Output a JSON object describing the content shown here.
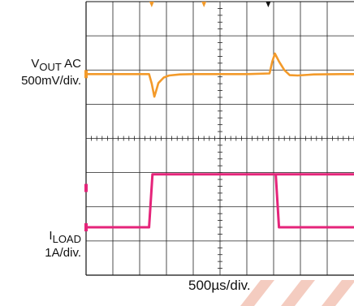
{
  "labels": {
    "vout_main": "V",
    "vout_sub": "OUT",
    "vout_suffix": " AC",
    "vout_scale": "500mV/div.",
    "iload_main": "I",
    "iload_sub": "LOAD",
    "iload_scale": "1A/div.",
    "time_scale": "500µs/div."
  },
  "chart_data": {
    "type": "line",
    "title": "",
    "grid": true,
    "x_divisions": 10,
    "y_divisions": 8,
    "x_scale": "500µs/div.",
    "xlim_div": [
      0,
      10
    ],
    "ylim_div": [
      0,
      8
    ],
    "series": [
      {
        "name": "VOUT AC",
        "color": "#f39a2a",
        "scale": "500mV/div.",
        "x_div": [
          0,
          2.35,
          2.45,
          2.55,
          2.6,
          2.7,
          2.9,
          3.1,
          3.5,
          4.0,
          5.0,
          6.0,
          6.85,
          6.95,
          7.05,
          7.2,
          7.4,
          7.6,
          7.9,
          8.5,
          9.5,
          10.0
        ],
        "y_div": [
          5.88,
          5.88,
          5.6,
          5.22,
          5.35,
          5.62,
          5.78,
          5.84,
          5.87,
          5.88,
          5.88,
          5.88,
          5.9,
          6.25,
          6.48,
          6.25,
          6.0,
          5.85,
          5.84,
          5.87,
          5.88,
          5.88
        ]
      },
      {
        "name": "ILOAD",
        "color": "#e5247a",
        "scale": "1A/div.",
        "x_div": [
          0,
          2.35,
          2.48,
          10.0
        ],
        "y_div": [
          1.4,
          1.4,
          2.95,
          2.95
        ],
        "x_fall": [
          7.08,
          7.2
        ],
        "y_high": 2.95,
        "y_low": 1.4
      }
    ],
    "markers": {
      "trigger_x_div": [
        2.45,
        4.4,
        6.8
      ],
      "ch1_y_div": 5.88,
      "ch2_y_div": 2.55,
      "ch3_y_div": 1.4
    }
  }
}
